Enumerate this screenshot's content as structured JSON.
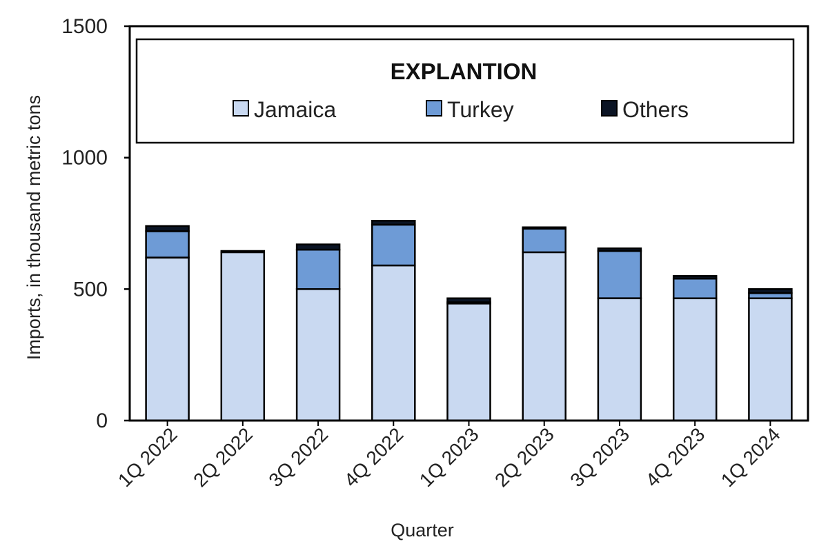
{
  "chart_data": {
    "type": "bar",
    "stacked": true,
    "title": "",
    "xlabel": "Quarter",
    "ylabel": "Imports, in thousand metric tons",
    "ylim": [
      0,
      1500
    ],
    "yticks": [
      0,
      500,
      1000,
      1500
    ],
    "grid": false,
    "legend": {
      "title": "EXPLANTION",
      "placement": "top"
    },
    "categories": [
      "1Q 2022",
      "2Q 2022",
      "3Q 2022",
      "4Q 2022",
      "1Q 2023",
      "2Q 2023",
      "3Q 2023",
      "4Q 2023",
      "1Q 2024"
    ],
    "series": [
      {
        "name": "Jamaica",
        "color": "#c9d9f1",
        "values": [
          620,
          640,
          500,
          590,
          445,
          640,
          465,
          465,
          465
        ]
      },
      {
        "name": "Turkey",
        "color": "#6e9bd6",
        "values": [
          100,
          0,
          150,
          155,
          5,
          90,
          180,
          75,
          20
        ]
      },
      {
        "name": "Others",
        "color": "#0b1424",
        "values": [
          20,
          5,
          20,
          15,
          15,
          5,
          10,
          10,
          15
        ]
      }
    ]
  }
}
